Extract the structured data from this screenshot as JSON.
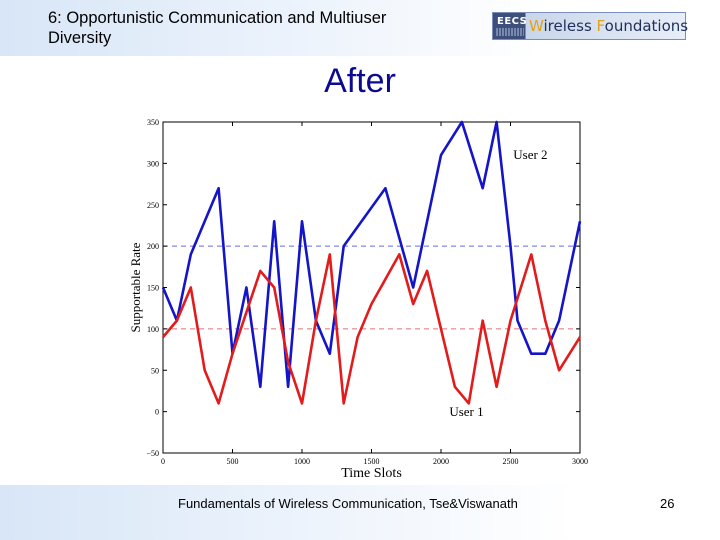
{
  "header": {
    "title": "6: Opportunistic Communication and Multiuser Diversity",
    "logo_eecs": "EECS",
    "logo_w": "W",
    "logo_mid": "ireless ",
    "logo_f": "F",
    "logo_end": "oundations"
  },
  "slide": {
    "title": "After"
  },
  "footer": {
    "text": "Fundamentals of Wireless Communication, Tse&Viswanath",
    "page": "26"
  },
  "colors": {
    "user1": "#e21c1c",
    "user2": "#1414c8",
    "blue_ref": "#6b6bd8",
    "red_ref": "#e07070"
  },
  "chart_data": {
    "type": "line",
    "xlabel": "Time Slots",
    "ylabel": "Supportable Rate",
    "xlim": [
      0,
      3000
    ],
    "ylim": [
      -50,
      350
    ],
    "xticks": [
      0,
      500,
      1000,
      1500,
      2000,
      2500,
      3000
    ],
    "yticks": [
      -50,
      0,
      50,
      100,
      150,
      200,
      250,
      300,
      350
    ],
    "grid": false,
    "reference_lines": [
      {
        "y": 200,
        "style": "dashed",
        "color": "blue"
      },
      {
        "y": 100,
        "style": "dashed",
        "color": "red"
      }
    ],
    "annotations": [
      {
        "text": "User 2",
        "x": 2520,
        "y": 305
      },
      {
        "text": "User 1",
        "x": 2060,
        "y": -5
      }
    ],
    "series": [
      {
        "name": "User 2",
        "x": [
          0,
          100,
          200,
          250,
          400,
          500,
          600,
          700,
          800,
          900,
          1000,
          1100,
          1200,
          1300,
          1600,
          1800,
          2000,
          2150,
          2300,
          2400,
          2500,
          2550,
          2650,
          2750,
          2850,
          3000
        ],
        "y": [
          150,
          110,
          190,
          210,
          270,
          70,
          150,
          30,
          230,
          30,
          230,
          110,
          70,
          200,
          270,
          150,
          310,
          350,
          270,
          350,
          200,
          110,
          70,
          70,
          110,
          230
        ]
      },
      {
        "name": "User 1",
        "x": [
          0,
          100,
          200,
          300,
          400,
          500,
          600,
          700,
          800,
          900,
          1000,
          1100,
          1200,
          1300,
          1400,
          1500,
          1700,
          1800,
          1900,
          2000,
          2100,
          2200,
          2300,
          2400,
          2500,
          2650,
          2750,
          2850,
          3000
        ],
        "y": [
          90,
          110,
          150,
          50,
          10,
          70,
          120,
          170,
          150,
          60,
          10,
          110,
          190,
          10,
          90,
          130,
          190,
          130,
          170,
          100,
          30,
          10,
          110,
          30,
          110,
          190,
          110,
          50,
          90
        ]
      }
    ]
  }
}
